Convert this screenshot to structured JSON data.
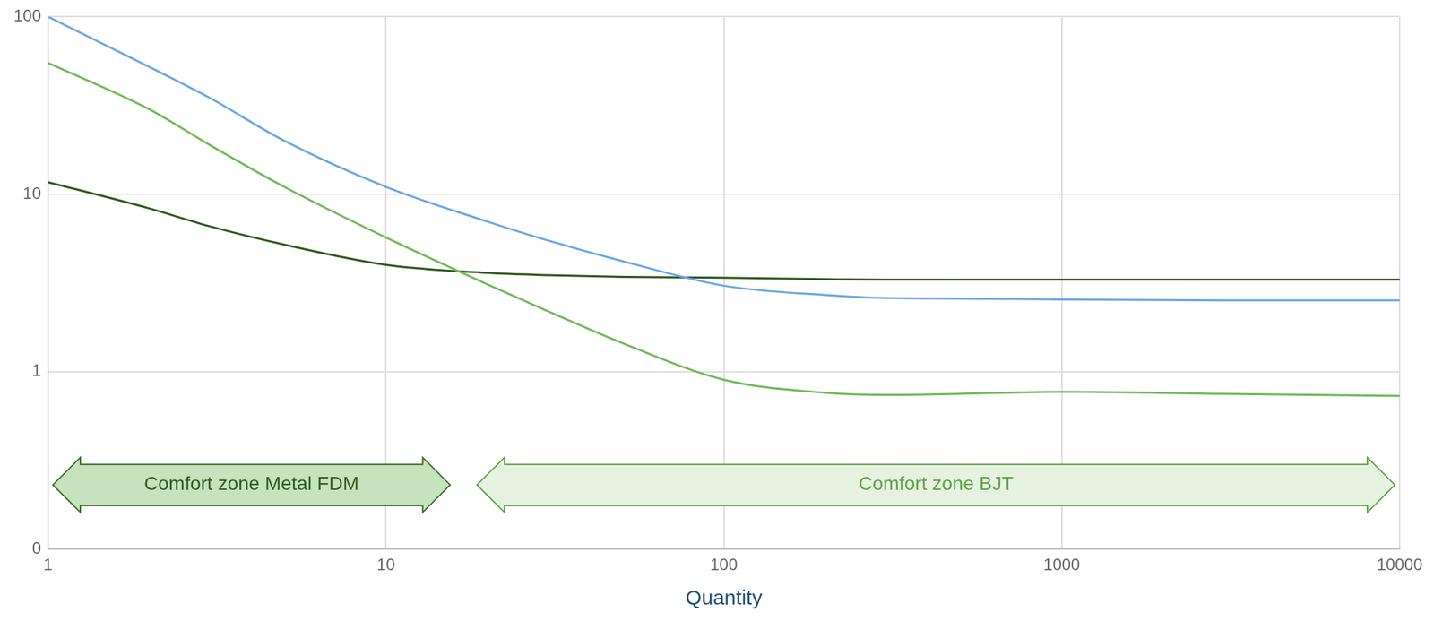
{
  "chart_data": {
    "type": "line",
    "x_label": "Quantity",
    "x": [
      1,
      2,
      3,
      5,
      10,
      20,
      30,
      50,
      100,
      200,
      300,
      500,
      1000,
      3000,
      10000
    ],
    "series": [
      {
        "color": "#6ca6e8",
        "values": [
          100,
          52,
          35,
          20,
          11,
          7.0,
          5.5,
          4.2,
          3.05,
          2.7,
          2.6,
          2.58,
          2.55,
          2.52,
          2.52
        ]
      },
      {
        "color": "#72b85a",
        "values": [
          55,
          30,
          19,
          11,
          5.7,
          3.1,
          2.2,
          1.45,
          0.9,
          0.76,
          0.74,
          0.75,
          0.77,
          0.75,
          0.73
        ]
      },
      {
        "color": "#2f5a1e",
        "values": [
          11.7,
          8.3,
          6.6,
          5.2,
          4.0,
          3.6,
          3.5,
          3.42,
          3.38,
          3.32,
          3.3,
          3.3,
          3.3,
          3.3,
          3.3
        ]
      }
    ],
    "xlim": [
      1,
      10000
    ],
    "xticks": [
      1,
      10,
      100,
      1000,
      10000
    ],
    "ylim": [
      0.1,
      100
    ],
    "yticks": [
      {
        "value": 0.1,
        "label": "0"
      },
      1,
      10,
      100
    ],
    "log": true,
    "grid": true,
    "annotations": [
      {
        "text": "Comfort zone Metal FDM",
        "x_range": [
          1,
          16
        ],
        "y": 0.23
      },
      {
        "text": "Comfort zone BJT",
        "x_range": [
          18,
          10000
        ],
        "y": 0.23
      }
    ]
  }
}
